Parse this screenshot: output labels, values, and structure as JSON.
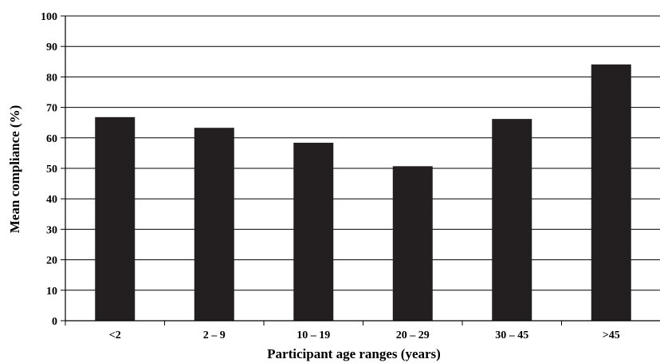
{
  "chart_data": {
    "type": "bar",
    "title": "",
    "xlabel": "Participant age ranges (years)",
    "ylabel": "Mean compliance (%)",
    "categories": [
      "<2",
      "2 – 9",
      "10 – 19",
      "20 – 29",
      "30 – 45",
      ">45"
    ],
    "values": [
      66.8,
      63.3,
      58.4,
      50.7,
      66.2,
      84.1
    ],
    "ylim": [
      0,
      100
    ],
    "yticks": [
      0,
      10,
      20,
      30,
      40,
      50,
      60,
      70,
      80,
      90,
      100
    ],
    "grid": true,
    "legend": "none",
    "bar_color": "#231f20"
  }
}
